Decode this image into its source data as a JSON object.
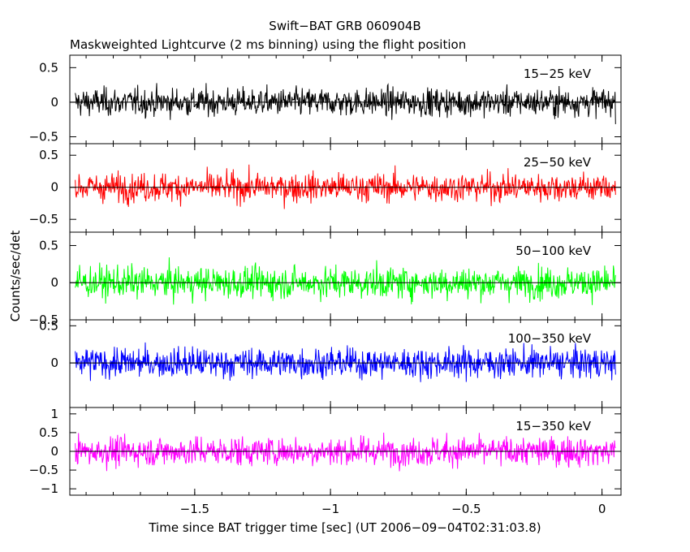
{
  "chart_data": {
    "type": "line",
    "title": "Swift−BAT GRB 060904B",
    "subtitle": "Maskweighted Lightcurve (2 ms binning) using the flight position",
    "xlabel": "Time since BAT trigger time [sec] (UT 2006−09−04T02:31:03.8)",
    "ylabel": "Counts/sec/det",
    "xlim": [
      -1.96,
      0.07
    ],
    "xticks": [
      -1.5,
      -1,
      -0.5,
      0
    ],
    "xtick_labels": [
      "−1.5",
      "−1",
      "−0.5",
      "0"
    ],
    "grid": false,
    "panels": [
      {
        "name": "15−25 keV",
        "color": "#000000",
        "ylim": [
          -0.6,
          0.68
        ],
        "yticks": [
          -0.5,
          0,
          0.5
        ],
        "ytick_labels": [
          "−0.5",
          "0",
          "0.5"
        ],
        "amplitude": 0.17
      },
      {
        "name": "25−50 keV",
        "color": "#ff0000",
        "ylim": [
          -0.7,
          0.68
        ],
        "yticks": [
          -0.5,
          0,
          0.5
        ],
        "ytick_labels": [
          "−0.5",
          "0",
          "0.5"
        ],
        "amplitude": 0.19
      },
      {
        "name": "50−100 keV",
        "color": "#00ff00",
        "ylim": [
          -0.5,
          0.68
        ],
        "yticks": [
          -0.5,
          0,
          0.5
        ],
        "ytick_labels": [
          "−0.5",
          "0",
          "0.5"
        ],
        "amplitude": 0.18
      },
      {
        "name": "100−350 keV",
        "color": "#0000ff",
        "ylim": [
          -0.6,
          0.58
        ],
        "yticks": [
          0,
          0.5
        ],
        "ytick_labels": [
          "0",
          "0.5"
        ],
        "amplitude": 0.17
      },
      {
        "name": "15−350 keV",
        "color": "#ff00ff",
        "ylim": [
          -1.17,
          1.17
        ],
        "yticks": [
          -1,
          -0.5,
          0,
          0.5,
          1
        ],
        "ytick_labels": [
          "−1",
          "−0.5",
          "0",
          "0.5",
          "1"
        ],
        "amplitude": 0.33
      }
    ],
    "series_x_range": [
      -1.94,
      0.05
    ],
    "bin_size": 0.002
  }
}
